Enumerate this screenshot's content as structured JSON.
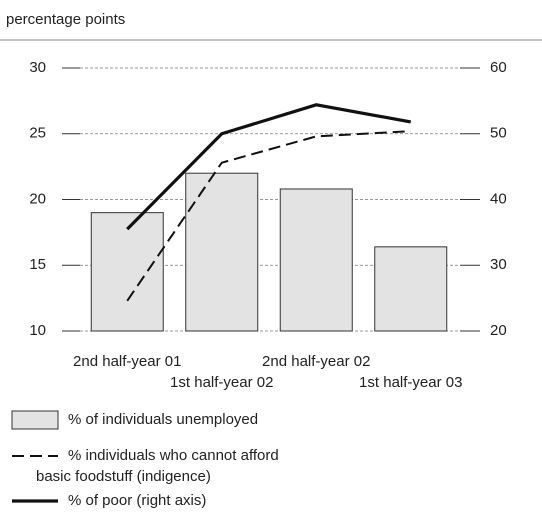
{
  "chart_data": {
    "type": "bar_line",
    "subtitle": "percentage points",
    "categories": [
      "2nd half-year 01",
      "1st half-year 02",
      "2nd half-year 02",
      "1st half-year 03"
    ],
    "ylim": [
      10,
      30
    ],
    "yticks": [
      10,
      15,
      20,
      25,
      30
    ],
    "y2lim": [
      20,
      60
    ],
    "y2ticks": [
      20,
      30,
      40,
      50,
      60
    ],
    "grid": true,
    "series": [
      {
        "name": "% of individuals unemployed",
        "type": "bar",
        "color": "#e3e3e3",
        "values": [
          19.0,
          22.0,
          20.8,
          16.4
        ]
      },
      {
        "name": "% individuals who cannot afford basic foodstuff (indigence)",
        "type": "line",
        "dash": true,
        "color": "#111111",
        "values": [
          12.3,
          22.8,
          24.8,
          25.2
        ]
      },
      {
        "name": "% of poor (right axis)",
        "type": "line",
        "axis": "y2",
        "color": "#111111",
        "values": [
          35.5,
          50.0,
          54.4,
          51.8
        ]
      }
    ]
  }
}
